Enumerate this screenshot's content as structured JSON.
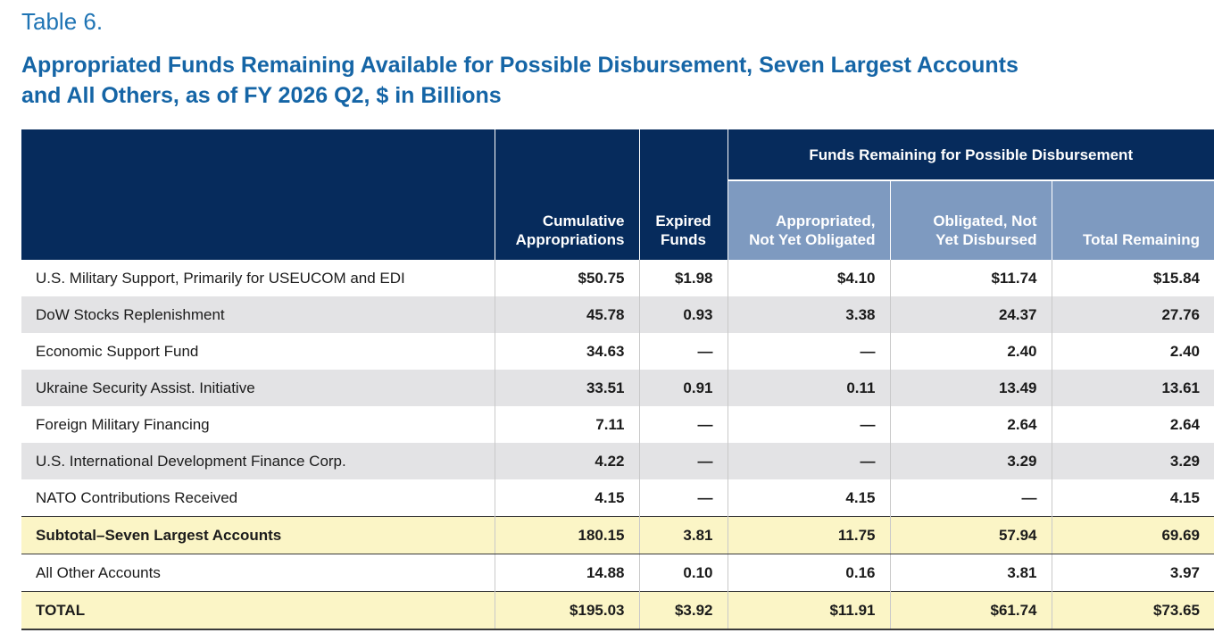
{
  "table_label": "Table 6.",
  "title_line1": "Appropriated Funds Remaining Available for Possible Disbursement, Seven Largest Accounts",
  "title_line2": "and All Others, as of FY 2026 Q2, $ in Billions",
  "header": {
    "group": "Funds Remaining for Possible Disbursement",
    "col1": [
      "Cumulative",
      "Appropriations"
    ],
    "col2": [
      "Expired",
      "Funds"
    ],
    "col3": [
      "Appropriated,",
      "Not Yet Obligated"
    ],
    "col4": [
      "Obligated, Not",
      "Yet Disbursed"
    ],
    "col5": "Total Remaining"
  },
  "rows": [
    {
      "label": "U.S. Military Support, Primarily for USEUCOM and EDI",
      "cumulative": "$50.75",
      "expired": "$1.98",
      "not_obligated": "$4.10",
      "not_disbursed": "$11.74",
      "total": "$15.84"
    },
    {
      "label": "DoW Stocks Replenishment",
      "cumulative": "45.78",
      "expired": "0.93",
      "not_obligated": "3.38",
      "not_disbursed": "24.37",
      "total": "27.76"
    },
    {
      "label": "Economic Support Fund",
      "cumulative": "34.63",
      "expired": "—",
      "not_obligated": "—",
      "not_disbursed": "2.40",
      "total": "2.40"
    },
    {
      "label": "Ukraine Security Assist. Initiative",
      "cumulative": "33.51",
      "expired": "0.91",
      "not_obligated": "0.11",
      "not_disbursed": "13.49",
      "total": "13.61"
    },
    {
      "label": "Foreign Military Financing",
      "cumulative": "7.11",
      "expired": "—",
      "not_obligated": "—",
      "not_disbursed": "2.64",
      "total": "2.64"
    },
    {
      "label": "U.S. International Development Finance Corp.",
      "cumulative": "4.22",
      "expired": "—",
      "not_obligated": "—",
      "not_disbursed": "3.29",
      "total": "3.29"
    },
    {
      "label": "NATO Contributions Received",
      "cumulative": "4.15",
      "expired": "—",
      "not_obligated": "4.15",
      "not_disbursed": "—",
      "total": "4.15"
    }
  ],
  "subtotal": {
    "label": "Subtotal–Seven Largest Accounts",
    "cumulative": "180.15",
    "expired": "3.81",
    "not_obligated": "11.75",
    "not_disbursed": "57.94",
    "total": "69.69"
  },
  "other": {
    "label": "All Other Accounts",
    "cumulative": "14.88",
    "expired": "0.10",
    "not_obligated": "0.16",
    "not_disbursed": "3.81",
    "total": "3.97"
  },
  "grand_total": {
    "label": "TOTAL",
    "cumulative": "$195.03",
    "expired": "$3.92",
    "not_obligated": "$11.91",
    "not_disbursed": "$61.74",
    "total": "$73.65"
  },
  "colors": {
    "header_dark": "#062b5c",
    "header_light": "#7e9ac0",
    "title_blue": "#1565a6",
    "row_shade": "#e3e3e5",
    "total_highlight": "#fbf5c6"
  }
}
